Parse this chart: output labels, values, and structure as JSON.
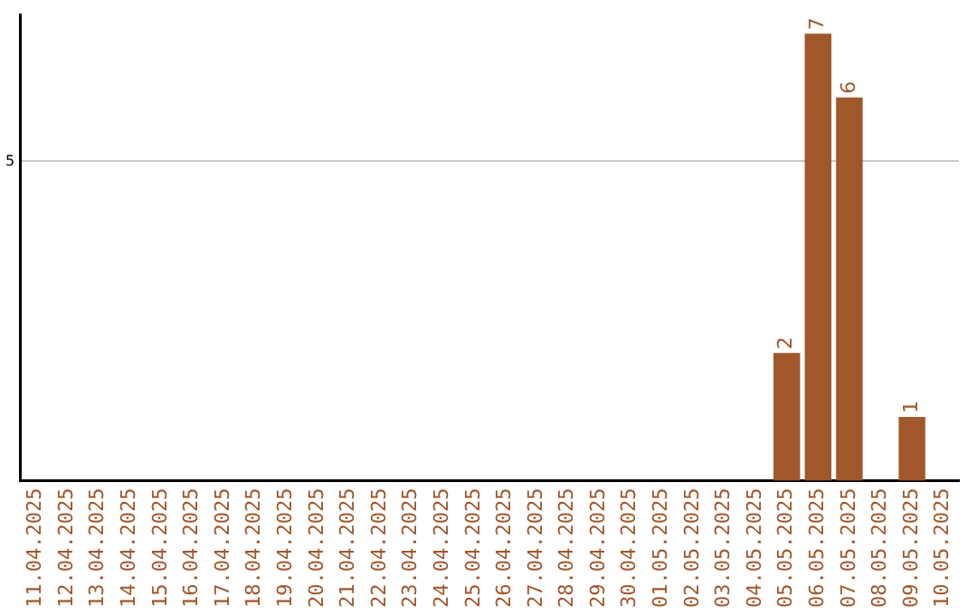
{
  "chart_data": {
    "type": "bar",
    "categories": [
      "11.04.2025",
      "12.04.2025",
      "13.04.2025",
      "14.04.2025",
      "15.04.2025",
      "16.04.2025",
      "17.04.2025",
      "18.04.2025",
      "19.04.2025",
      "20.04.2025",
      "21.04.2025",
      "22.04.2025",
      "23.04.2025",
      "24.04.2025",
      "25.04.2025",
      "26.04.2025",
      "27.04.2025",
      "28.04.2025",
      "29.04.2025",
      "30.04.2025",
      "01.05.2025",
      "02.05.2025",
      "03.05.2025",
      "04.05.2025",
      "05.05.2025",
      "06.05.2025",
      "07.05.2025",
      "08.05.2025",
      "09.05.2025",
      "10.05.2025"
    ],
    "values": [
      null,
      null,
      null,
      null,
      null,
      null,
      null,
      null,
      null,
      null,
      null,
      null,
      null,
      null,
      null,
      null,
      null,
      null,
      null,
      null,
      null,
      null,
      null,
      null,
      2,
      7,
      6,
      null,
      1,
      null
    ],
    "color": "#a0572a",
    "ylim": [
      0,
      7.3
    ],
    "yticks": [
      5
    ],
    "grid": "y",
    "data_labels": true,
    "legend": false
  }
}
